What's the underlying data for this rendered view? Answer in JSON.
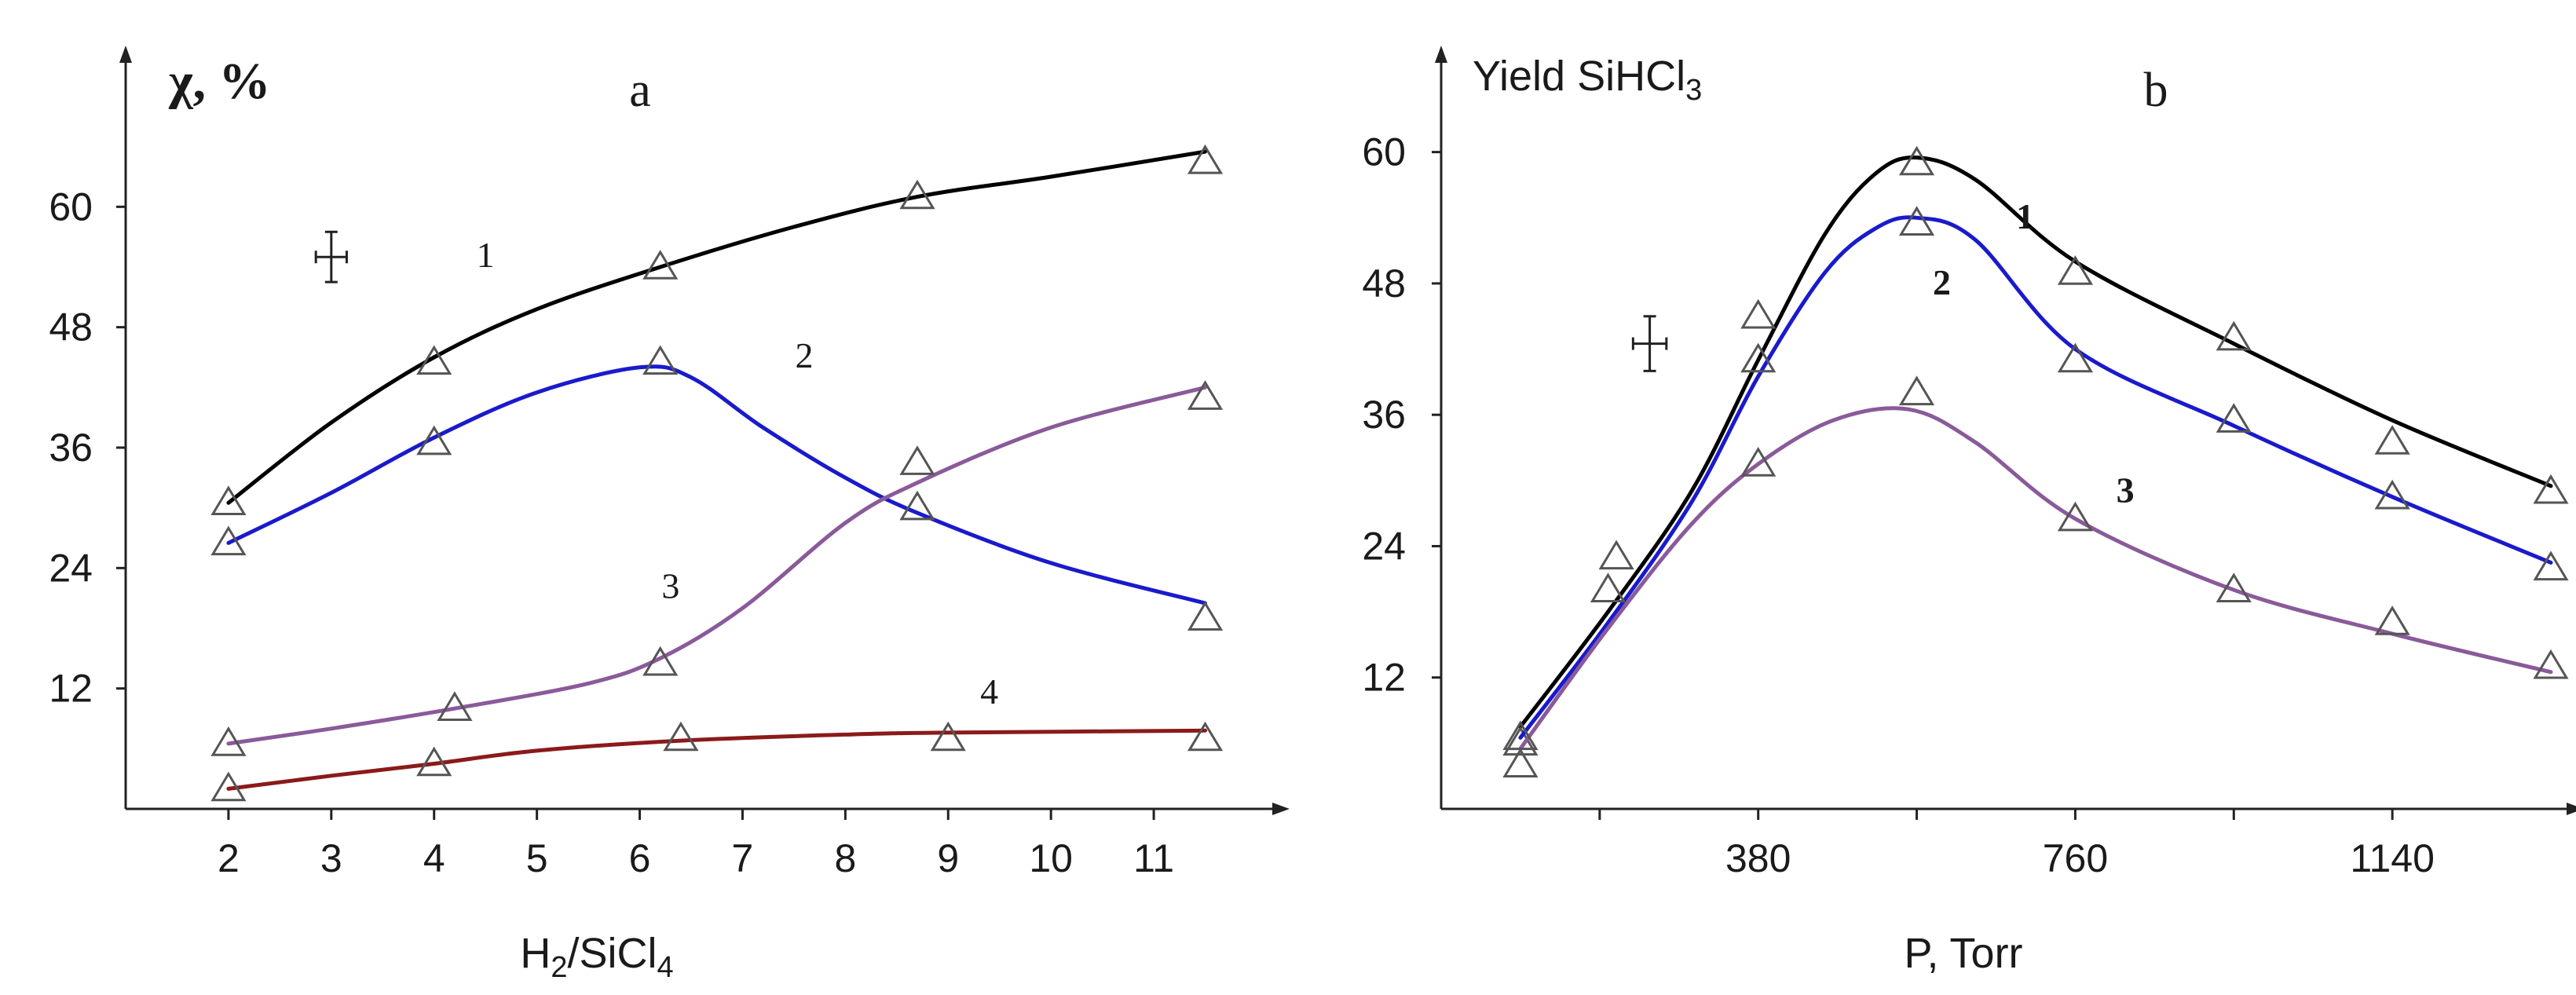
{
  "chart_data": [
    {
      "type": "line",
      "panel": "a",
      "ylabel": "χ, %",
      "xlabel": "H₂/SiCl₄",
      "xlim": [
        1.0,
        12.0
      ],
      "ylim": [
        0,
        72
      ],
      "xticks": [
        2,
        3,
        4,
        5,
        6,
        7,
        8,
        9,
        10,
        11
      ],
      "yticks": [
        12,
        24,
        36,
        48,
        60
      ],
      "marker": "triangle",
      "colors": {
        "1": "#000000",
        "2": "#1a1acc",
        "3": "#8a5a9a",
        "4": "#8b1a1a"
      },
      "series": [
        {
          "name": "1",
          "points": [
            [
              2.0,
              30.5
            ],
            [
              4.0,
              44.5
            ],
            [
              6.2,
              54.0
            ],
            [
              8.7,
              61.0
            ],
            [
              11.5,
              64.5
            ]
          ],
          "curve": [
            [
              2.0,
              30.5
            ],
            [
              3.0,
              38.5
            ],
            [
              4.0,
              45.0
            ],
            [
              5.0,
              49.8
            ],
            [
              6.2,
              54.0
            ],
            [
              7.5,
              58.0
            ],
            [
              8.7,
              61.0
            ],
            [
              10.0,
              63.0
            ],
            [
              11.5,
              65.5
            ]
          ]
        },
        {
          "name": "2",
          "points": [
            [
              2.0,
              26.5
            ],
            [
              4.0,
              36.5
            ],
            [
              6.2,
              44.5
            ],
            [
              8.7,
              30.0
            ],
            [
              11.5,
              19.0
            ]
          ],
          "curve": [
            [
              2.0,
              26.5
            ],
            [
              3.0,
              31.5
            ],
            [
              4.0,
              37.0
            ],
            [
              5.0,
              41.5
            ],
            [
              6.0,
              44.0
            ],
            [
              6.5,
              43.0
            ],
            [
              7.2,
              38.0
            ],
            [
              8.0,
              33.0
            ],
            [
              8.7,
              29.5
            ],
            [
              10.0,
              24.5
            ],
            [
              11.5,
              20.5
            ]
          ]
        },
        {
          "name": "3",
          "points": [
            [
              2.0,
              6.5
            ],
            [
              4.2,
              10.0
            ],
            [
              6.2,
              14.5
            ],
            [
              8.7,
              34.5
            ],
            [
              11.5,
              41.0
            ]
          ],
          "curve": [
            [
              2.0,
              6.5
            ],
            [
              3.0,
              8.0
            ],
            [
              4.2,
              10.0
            ],
            [
              5.5,
              12.5
            ],
            [
              6.2,
              15.0
            ],
            [
              7.0,
              20.0
            ],
            [
              8.0,
              28.5
            ],
            [
              8.7,
              32.5
            ],
            [
              10.0,
              38.0
            ],
            [
              11.5,
              42.0
            ]
          ]
        },
        {
          "name": "4",
          "points": [
            [
              2.0,
              2.0
            ],
            [
              4.0,
              4.5
            ],
            [
              6.4,
              7.0
            ],
            [
              9.0,
              7.0
            ],
            [
              11.5,
              7.0
            ]
          ],
          "curve": [
            [
              2.0,
              2.0
            ],
            [
              3.0,
              3.3
            ],
            [
              4.0,
              4.5
            ],
            [
              5.0,
              5.8
            ],
            [
              6.4,
              6.8
            ],
            [
              8.0,
              7.4
            ],
            [
              9.0,
              7.6
            ],
            [
              11.5,
              7.8
            ]
          ]
        }
      ],
      "labels": [
        {
          "text": "1",
          "at": [
            4.5,
            54.0
          ]
        },
        {
          "text": "2",
          "at": [
            7.6,
            44.0
          ]
        },
        {
          "text": "3",
          "at": [
            6.3,
            21.0
          ]
        },
        {
          "text": "4",
          "at": [
            9.4,
            10.5
          ]
        }
      ],
      "error_cross": {
        "x": 3.0,
        "y": 55.0,
        "dx": 0.15,
        "dy": 2.5
      }
    },
    {
      "type": "line",
      "panel": "b",
      "ylabel": "Yield SiHCl₃",
      "xlabel": "P, Torr",
      "xlim": [
        0,
        1330
      ],
      "ylim": [
        0,
        66
      ],
      "xticks": [
        380,
        760,
        1140
      ],
      "xminor": [
        190,
        570,
        950
      ],
      "yticks": [
        12,
        24,
        36,
        48,
        60
      ],
      "marker": "triangle",
      "colors": {
        "1": "#000000",
        "2": "#1a1acc",
        "3": "#8a5a9a"
      },
      "series": [
        {
          "name": "1",
          "points": [
            [
              95,
              6.0
            ],
            [
              380,
              45.0
            ],
            [
              570,
              59.0
            ],
            [
              760,
              49.0
            ],
            [
              950,
              43.0
            ],
            [
              1140,
              33.5
            ],
            [
              1330,
              29.0
            ]
          ],
          "curve": [
            [
              95,
              7.5
            ],
            [
              200,
              18.0
            ],
            [
              300,
              29.0
            ],
            [
              380,
              41.0
            ],
            [
              460,
              52.5
            ],
            [
              520,
              58.0
            ],
            [
              570,
              59.5
            ],
            [
              640,
              57.5
            ],
            [
              760,
              50.0
            ],
            [
              950,
              42.5
            ],
            [
              1140,
              35.5
            ],
            [
              1330,
              29.5
            ]
          ]
        },
        {
          "name": "2",
          "points": [
            [
              95,
              4.0
            ],
            [
              380,
              41.0
            ],
            [
              570,
              53.5
            ],
            [
              760,
              41.0
            ],
            [
              950,
              35.5
            ],
            [
              1140,
              28.5
            ],
            [
              1330,
              22.0
            ]
          ],
          "curve": [
            [
              95,
              6.5
            ],
            [
              200,
              17.0
            ],
            [
              300,
              28.0
            ],
            [
              380,
              39.5
            ],
            [
              460,
              49.0
            ],
            [
              520,
              53.0
            ],
            [
              570,
              54.0
            ],
            [
              640,
              52.0
            ],
            [
              760,
              42.0
            ],
            [
              950,
              35.0
            ],
            [
              1140,
              28.5
            ],
            [
              1330,
              22.5
            ]
          ]
        },
        {
          "name": "3",
          "points": [
            [
              95,
              6.5
            ],
            [
              200,
              20.0
            ],
            [
              210,
              23.0
            ],
            [
              380,
              31.5
            ],
            [
              570,
              38.0
            ],
            [
              760,
              26.5
            ],
            [
              950,
              20.0
            ],
            [
              1140,
              17.0
            ],
            [
              1330,
              13.0
            ]
          ],
          "curve": [
            [
              95,
              5.5
            ],
            [
              200,
              16.5
            ],
            [
              300,
              26.0
            ],
            [
              380,
              31.5
            ],
            [
              470,
              35.5
            ],
            [
              560,
              36.5
            ],
            [
              640,
              33.5
            ],
            [
              760,
              26.5
            ],
            [
              950,
              20.0
            ],
            [
              1140,
              16.0
            ],
            [
              1330,
              12.5
            ]
          ]
        }
      ],
      "labels": [
        {
          "text": "1",
          "at": [
            700,
            53.0
          ],
          "bold": true
        },
        {
          "text": "2",
          "at": [
            600,
            47.0
          ],
          "bold": true
        },
        {
          "text": "3",
          "at": [
            820,
            28.0
          ],
          "bold": true
        }
      ],
      "error_cross": {
        "x": 250,
        "y": 42.5,
        "dx": 20,
        "dy": 2.5
      }
    }
  ]
}
